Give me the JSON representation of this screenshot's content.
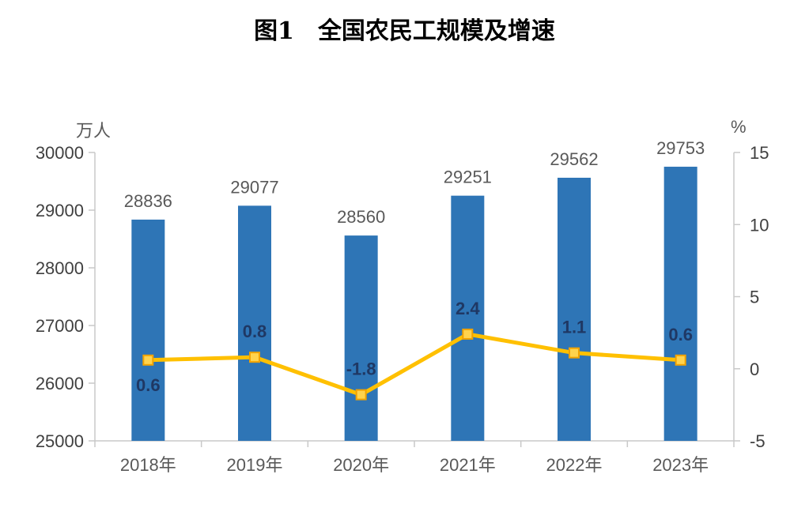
{
  "title": {
    "prefix": "图1",
    "text": "全国农民工规模及增速"
  },
  "chart_data": {
    "type": "bar",
    "subtype": "bar-line-combo",
    "title": "图1 全国农民工规模及增速",
    "categories": [
      "2018年",
      "2019年",
      "2020年",
      "2021年",
      "2022年",
      "2023年"
    ],
    "series": [
      {
        "type": "bar",
        "axis": "left",
        "values": [
          28836,
          29077,
          28560,
          29251,
          29562,
          29753
        ],
        "data_labels": [
          "28836",
          "29077",
          "28560",
          "29251",
          "29562",
          "29753"
        ]
      },
      {
        "type": "line",
        "axis": "right",
        "values": [
          0.6,
          0.8,
          -1.8,
          2.4,
          1.1,
          0.6
        ],
        "data_labels": [
          "0.6",
          "0.8",
          "-1.8",
          "2.4",
          "1.1",
          "0.6"
        ]
      }
    ],
    "left_axis": {
      "unit": "万人",
      "min": 25000,
      "max": 30000,
      "tick_step": 1000,
      "ticks": [
        "30000",
        "29000",
        "28000",
        "27000",
        "26000",
        "25000"
      ]
    },
    "right_axis": {
      "unit": "%",
      "min": -5,
      "max": 15,
      "tick_step": 5,
      "ticks": [
        "15",
        "10",
        "5",
        "0",
        "-5"
      ]
    },
    "grid": "off",
    "legend": "none",
    "colors": {
      "bar": "#2E75B6",
      "line": "#FFC000",
      "marker_fill": "#FFD34D",
      "marker_stroke": "#F0A202",
      "axis_line": "#C9C9C9",
      "tick_label": "#404040",
      "category_label": "#595959",
      "bar_label": "#595959",
      "line_label": "#1F3864",
      "axis_unit": "#595959",
      "title": "#000000",
      "background": "#FFFFFF"
    }
  }
}
